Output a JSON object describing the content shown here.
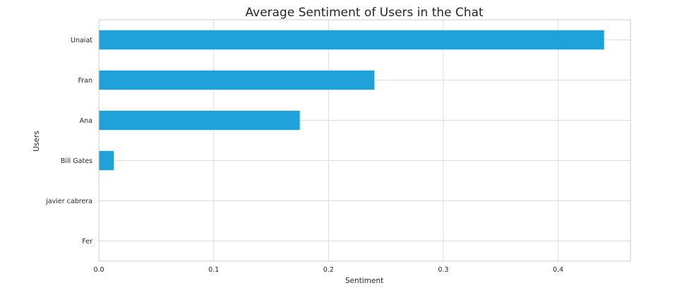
{
  "chart_data": {
    "type": "bar",
    "orientation": "horizontal",
    "title": "Average Sentiment of Users in the Chat",
    "xlabel": "Sentiment",
    "ylabel": "Users",
    "categories": [
      "Unaiat",
      "Fran",
      "Ana",
      "Bill Gates",
      "javier cabrera",
      "Fer"
    ],
    "values": [
      0.44,
      0.24,
      0.175,
      0.013,
      0,
      0
    ],
    "xlim": [
      0,
      0.463
    ],
    "xticks": [
      0.0,
      0.1,
      0.2,
      0.3,
      0.4
    ],
    "xtick_labels": [
      "0.0",
      "0.1",
      "0.2",
      "0.3",
      "0.4"
    ],
    "grid": true,
    "bar_color": "#1ea2d9",
    "grid_color": "#dddddd",
    "spine_color": "#cccccc"
  }
}
